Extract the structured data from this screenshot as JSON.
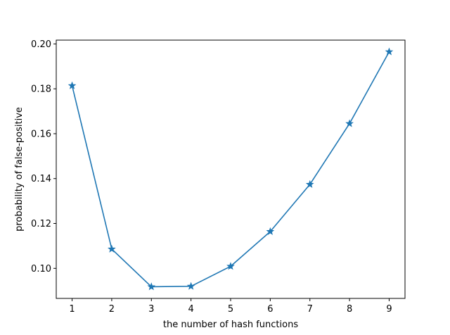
{
  "chart_data": {
    "type": "line",
    "title": "",
    "xlabel": "the number of hash functions",
    "ylabel": "probability of false-positive",
    "x": [
      1,
      2,
      3,
      4,
      5,
      6,
      7,
      8,
      9
    ],
    "series": [
      {
        "values": [
          0.1814,
          0.1086,
          0.0918,
          0.092,
          0.1009,
          0.1164,
          0.1374,
          0.1645,
          0.1965
        ],
        "color": "#1f77b4",
        "marker": "star"
      }
    ],
    "xticks": [
      "1",
      "2",
      "3",
      "4",
      "5",
      "6",
      "7",
      "8",
      "9"
    ],
    "yticks": [
      "0.10",
      "0.12",
      "0.14",
      "0.16",
      "0.18",
      "0.20"
    ],
    "xlim": [
      0.6,
      9.4
    ],
    "ylim": [
      0.0866,
      0.2017
    ],
    "grid": false,
    "legend": "none"
  }
}
